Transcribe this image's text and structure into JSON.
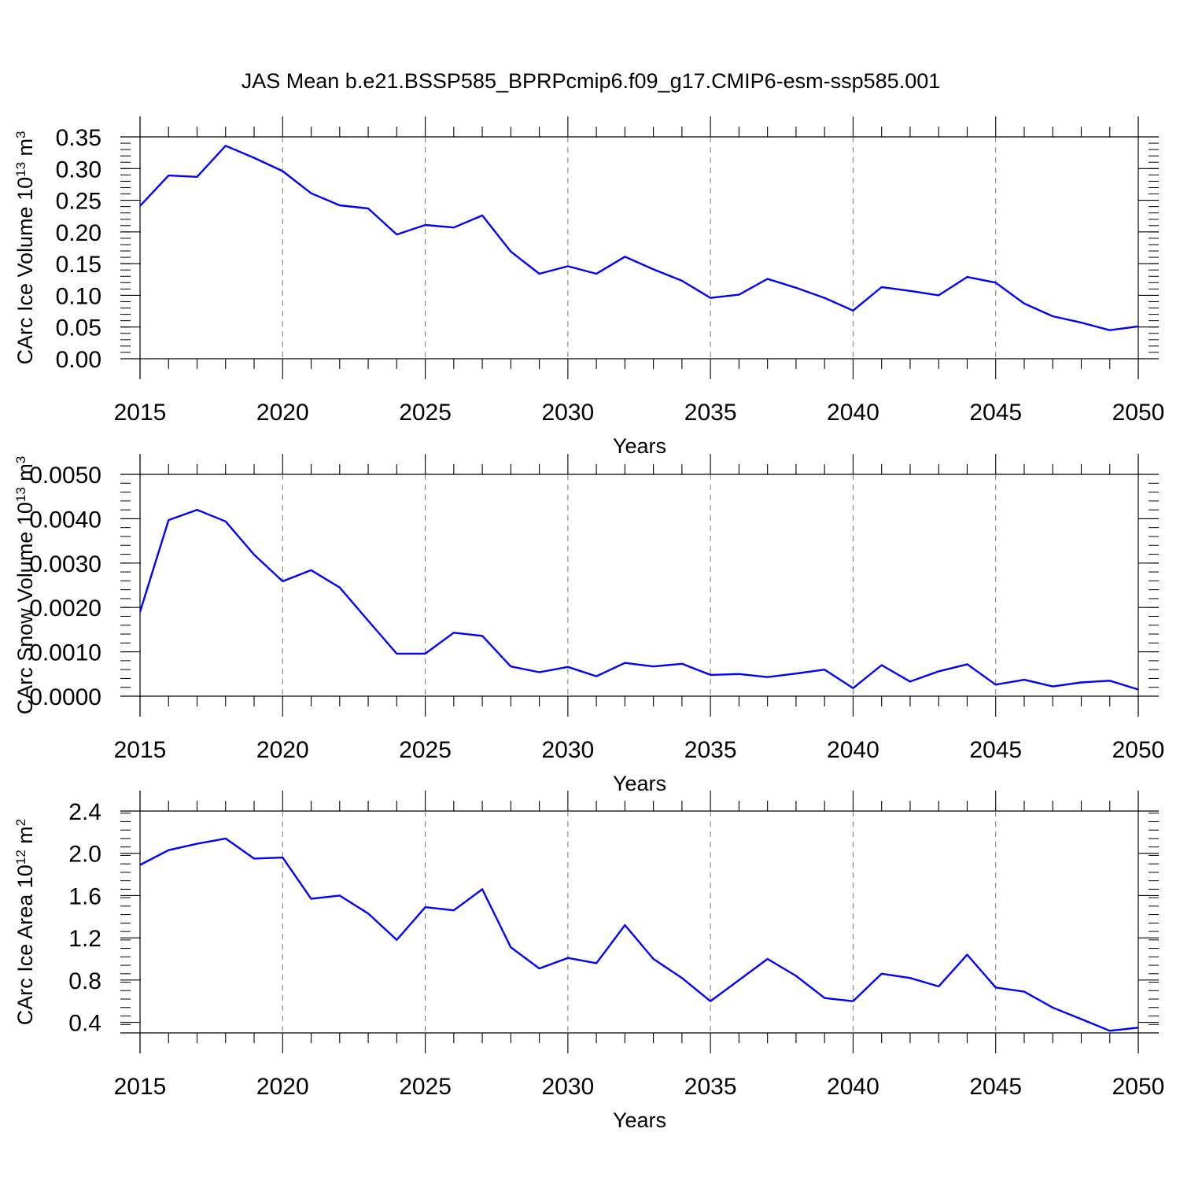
{
  "title": "JAS Mean b.e21.BSSP585_BPRPcmip6.f09_g17.CMIP6-esm-ssp585.001",
  "chart_data": [
    {
      "type": "line",
      "title": "",
      "xlabel": "Years",
      "ylabel": "CArc Ice Volume",
      "ylabel_power": "13",
      "ylabel_unit": "m",
      "ylabel_unit_power": "3",
      "xlim": [
        2015,
        2050
      ],
      "ylim": [
        0.0,
        0.35
      ],
      "yticks": [
        0.0,
        0.05,
        0.1,
        0.15,
        0.2,
        0.25,
        0.3,
        0.35
      ],
      "ytick_labels": [
        "0.00",
        "0.05",
        "0.10",
        "0.15",
        "0.20",
        "0.25",
        "0.30",
        "0.35"
      ],
      "xticks": [
        2015,
        2020,
        2025,
        2030,
        2035,
        2040,
        2045,
        2050
      ],
      "xtick_labels": [
        "2015",
        "2020",
        "2025",
        "2030",
        "2035",
        "2040",
        "2045",
        "2050"
      ],
      "grid": "vertical dashed at major x ticks",
      "line_color": "#0000ff",
      "x": [
        2015,
        2016,
        2017,
        2018,
        2019,
        2020,
        2021,
        2022,
        2023,
        2024,
        2025,
        2026,
        2027,
        2028,
        2029,
        2030,
        2031,
        2032,
        2033,
        2034,
        2035,
        2036,
        2037,
        2038,
        2039,
        2040,
        2041,
        2042,
        2043,
        2044,
        2045,
        2046,
        2047,
        2048,
        2049,
        2050
      ],
      "values": [
        0.241,
        0.289,
        0.287,
        0.336,
        0.317,
        0.296,
        0.261,
        0.242,
        0.237,
        0.196,
        0.211,
        0.207,
        0.226,
        0.169,
        0.134,
        0.146,
        0.134,
        0.161,
        0.141,
        0.123,
        0.096,
        0.101,
        0.126,
        0.112,
        0.096,
        0.076,
        0.113,
        0.107,
        0.1,
        0.129,
        0.12,
        0.087,
        0.067,
        0.057,
        0.045,
        0.051
      ]
    },
    {
      "type": "line",
      "title": "",
      "xlabel": "Years",
      "ylabel": "CArc Snow Volume",
      "ylabel_power": "13",
      "ylabel_unit": "m",
      "ylabel_unit_power": "3",
      "xlim": [
        2015,
        2050
      ],
      "ylim": [
        0.0,
        0.005
      ],
      "yticks": [
        0.0,
        0.001,
        0.002,
        0.003,
        0.004,
        0.005
      ],
      "ytick_labels": [
        "0.0000",
        "0.0010",
        "0.0020",
        "0.0030",
        "0.0040",
        "0.0050"
      ],
      "xticks": [
        2015,
        2020,
        2025,
        2030,
        2035,
        2040,
        2045,
        2050
      ],
      "xtick_labels": [
        "2015",
        "2020",
        "2025",
        "2030",
        "2035",
        "2040",
        "2045",
        "2050"
      ],
      "grid": "vertical dashed at major x ticks",
      "line_color": "#0000ff",
      "x": [
        2015,
        2016,
        2017,
        2018,
        2019,
        2020,
        2021,
        2022,
        2023,
        2024,
        2025,
        2026,
        2027,
        2028,
        2029,
        2030,
        2031,
        2032,
        2033,
        2034,
        2035,
        2036,
        2037,
        2038,
        2039,
        2040,
        2041,
        2042,
        2043,
        2044,
        2045,
        2046,
        2047,
        2048,
        2049,
        2050
      ],
      "values": [
        0.0019,
        0.00397,
        0.0042,
        0.00394,
        0.00319,
        0.00259,
        0.00284,
        0.00245,
        0.0017,
        0.00096,
        0.00096,
        0.00143,
        0.00136,
        0.00067,
        0.00054,
        0.00066,
        0.00045,
        0.00075,
        0.00067,
        0.00073,
        0.00048,
        0.0005,
        0.00043,
        0.00051,
        0.0006,
        0.00018,
        0.0007,
        0.00033,
        0.00056,
        0.00072,
        0.00026,
        0.00037,
        0.00022,
        0.00031,
        0.00035,
        0.00015
      ]
    },
    {
      "type": "line",
      "title": "",
      "xlabel": "Years",
      "ylabel": "CArc Ice Area",
      "ylabel_power": "12",
      "ylabel_unit": "m",
      "ylabel_unit_power": "2",
      "xlim": [
        2015,
        2050
      ],
      "ylim": [
        0.3,
        2.4
      ],
      "yticks": [
        0.4,
        0.8,
        1.2,
        1.6,
        2.0,
        2.4
      ],
      "ytick_labels": [
        "0.4",
        "0.8",
        "1.2",
        "1.6",
        "2.0",
        "2.4"
      ],
      "xticks": [
        2015,
        2020,
        2025,
        2030,
        2035,
        2040,
        2045,
        2050
      ],
      "xtick_labels": [
        "2015",
        "2020",
        "2025",
        "2030",
        "2035",
        "2040",
        "2045",
        "2050"
      ],
      "grid": "vertical dashed at major x ticks",
      "line_color": "#0000ff",
      "x": [
        2015,
        2016,
        2017,
        2018,
        2019,
        2020,
        2021,
        2022,
        2023,
        2024,
        2025,
        2026,
        2027,
        2028,
        2029,
        2030,
        2031,
        2032,
        2033,
        2034,
        2035,
        2036,
        2037,
        2038,
        2039,
        2040,
        2041,
        2042,
        2043,
        2044,
        2045,
        2046,
        2047,
        2048,
        2049,
        2050
      ],
      "values": [
        1.89,
        2.03,
        2.09,
        2.14,
        1.95,
        1.96,
        1.57,
        1.6,
        1.43,
        1.18,
        1.49,
        1.46,
        1.66,
        1.11,
        0.91,
        1.01,
        0.96,
        1.32,
        1.0,
        0.82,
        0.6,
        0.8,
        1.0,
        0.84,
        0.63,
        0.6,
        0.86,
        0.82,
        0.74,
        1.04,
        0.73,
        0.69,
        0.54,
        0.43,
        0.32,
        0.35
      ]
    }
  ]
}
